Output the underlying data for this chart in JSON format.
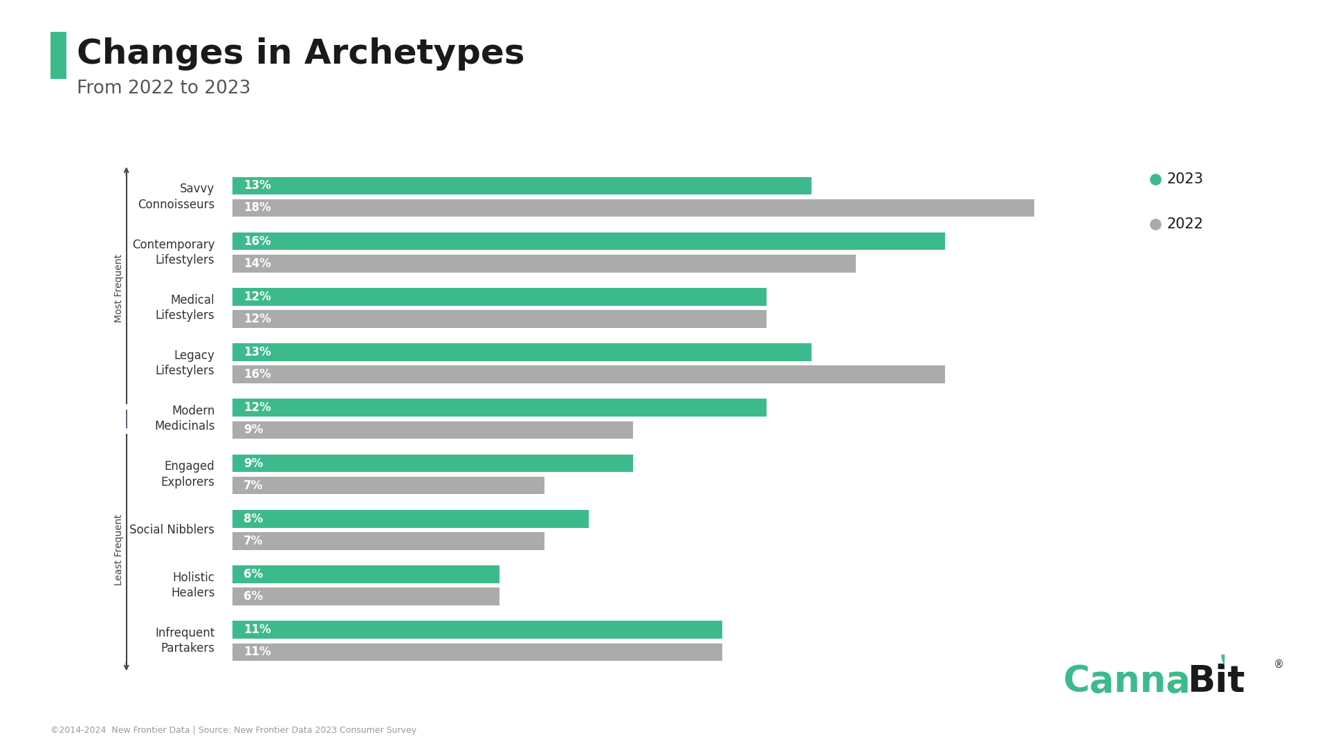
{
  "title": "Changes in Archetypes",
  "subtitle": "From 2022 to 2023",
  "categories": [
    "Savvy\nConnoisseurs",
    "Contemporary\nLifestylers",
    "Medical\nLifestylers",
    "Legacy\nLifestylers",
    "Modern\nMedicinals",
    "Engaged\nExplorers",
    "Social Nibblers",
    "Holistic\nHealers",
    "Infrequent\nPartakers"
  ],
  "values_2023": [
    13,
    16,
    12,
    13,
    12,
    9,
    8,
    6,
    11
  ],
  "values_2022": [
    18,
    14,
    12,
    16,
    9,
    7,
    7,
    6,
    11
  ],
  "color_2023": "#3dba8c",
  "color_2022": "#ababab",
  "bar_height": 0.32,
  "background_color": "#ffffff",
  "title_color": "#1a1a1a",
  "subtitle_color": "#555555",
  "label_color": "#ffffff",
  "axis_label_color": "#333333",
  "title_fontsize": 36,
  "subtitle_fontsize": 19,
  "bar_label_fontsize": 12,
  "category_fontsize": 12,
  "legend_fontsize": 15,
  "source_text": "©2014-2024  New Frontier Data | Source: New Frontier Data 2023 Consumer Survey",
  "source_fontsize": 9,
  "title_rect_color": "#3dba8c",
  "arrow_label_most": "Most Frequent",
  "arrow_label_least": "Least Frequent",
  "xlim_max": 20
}
